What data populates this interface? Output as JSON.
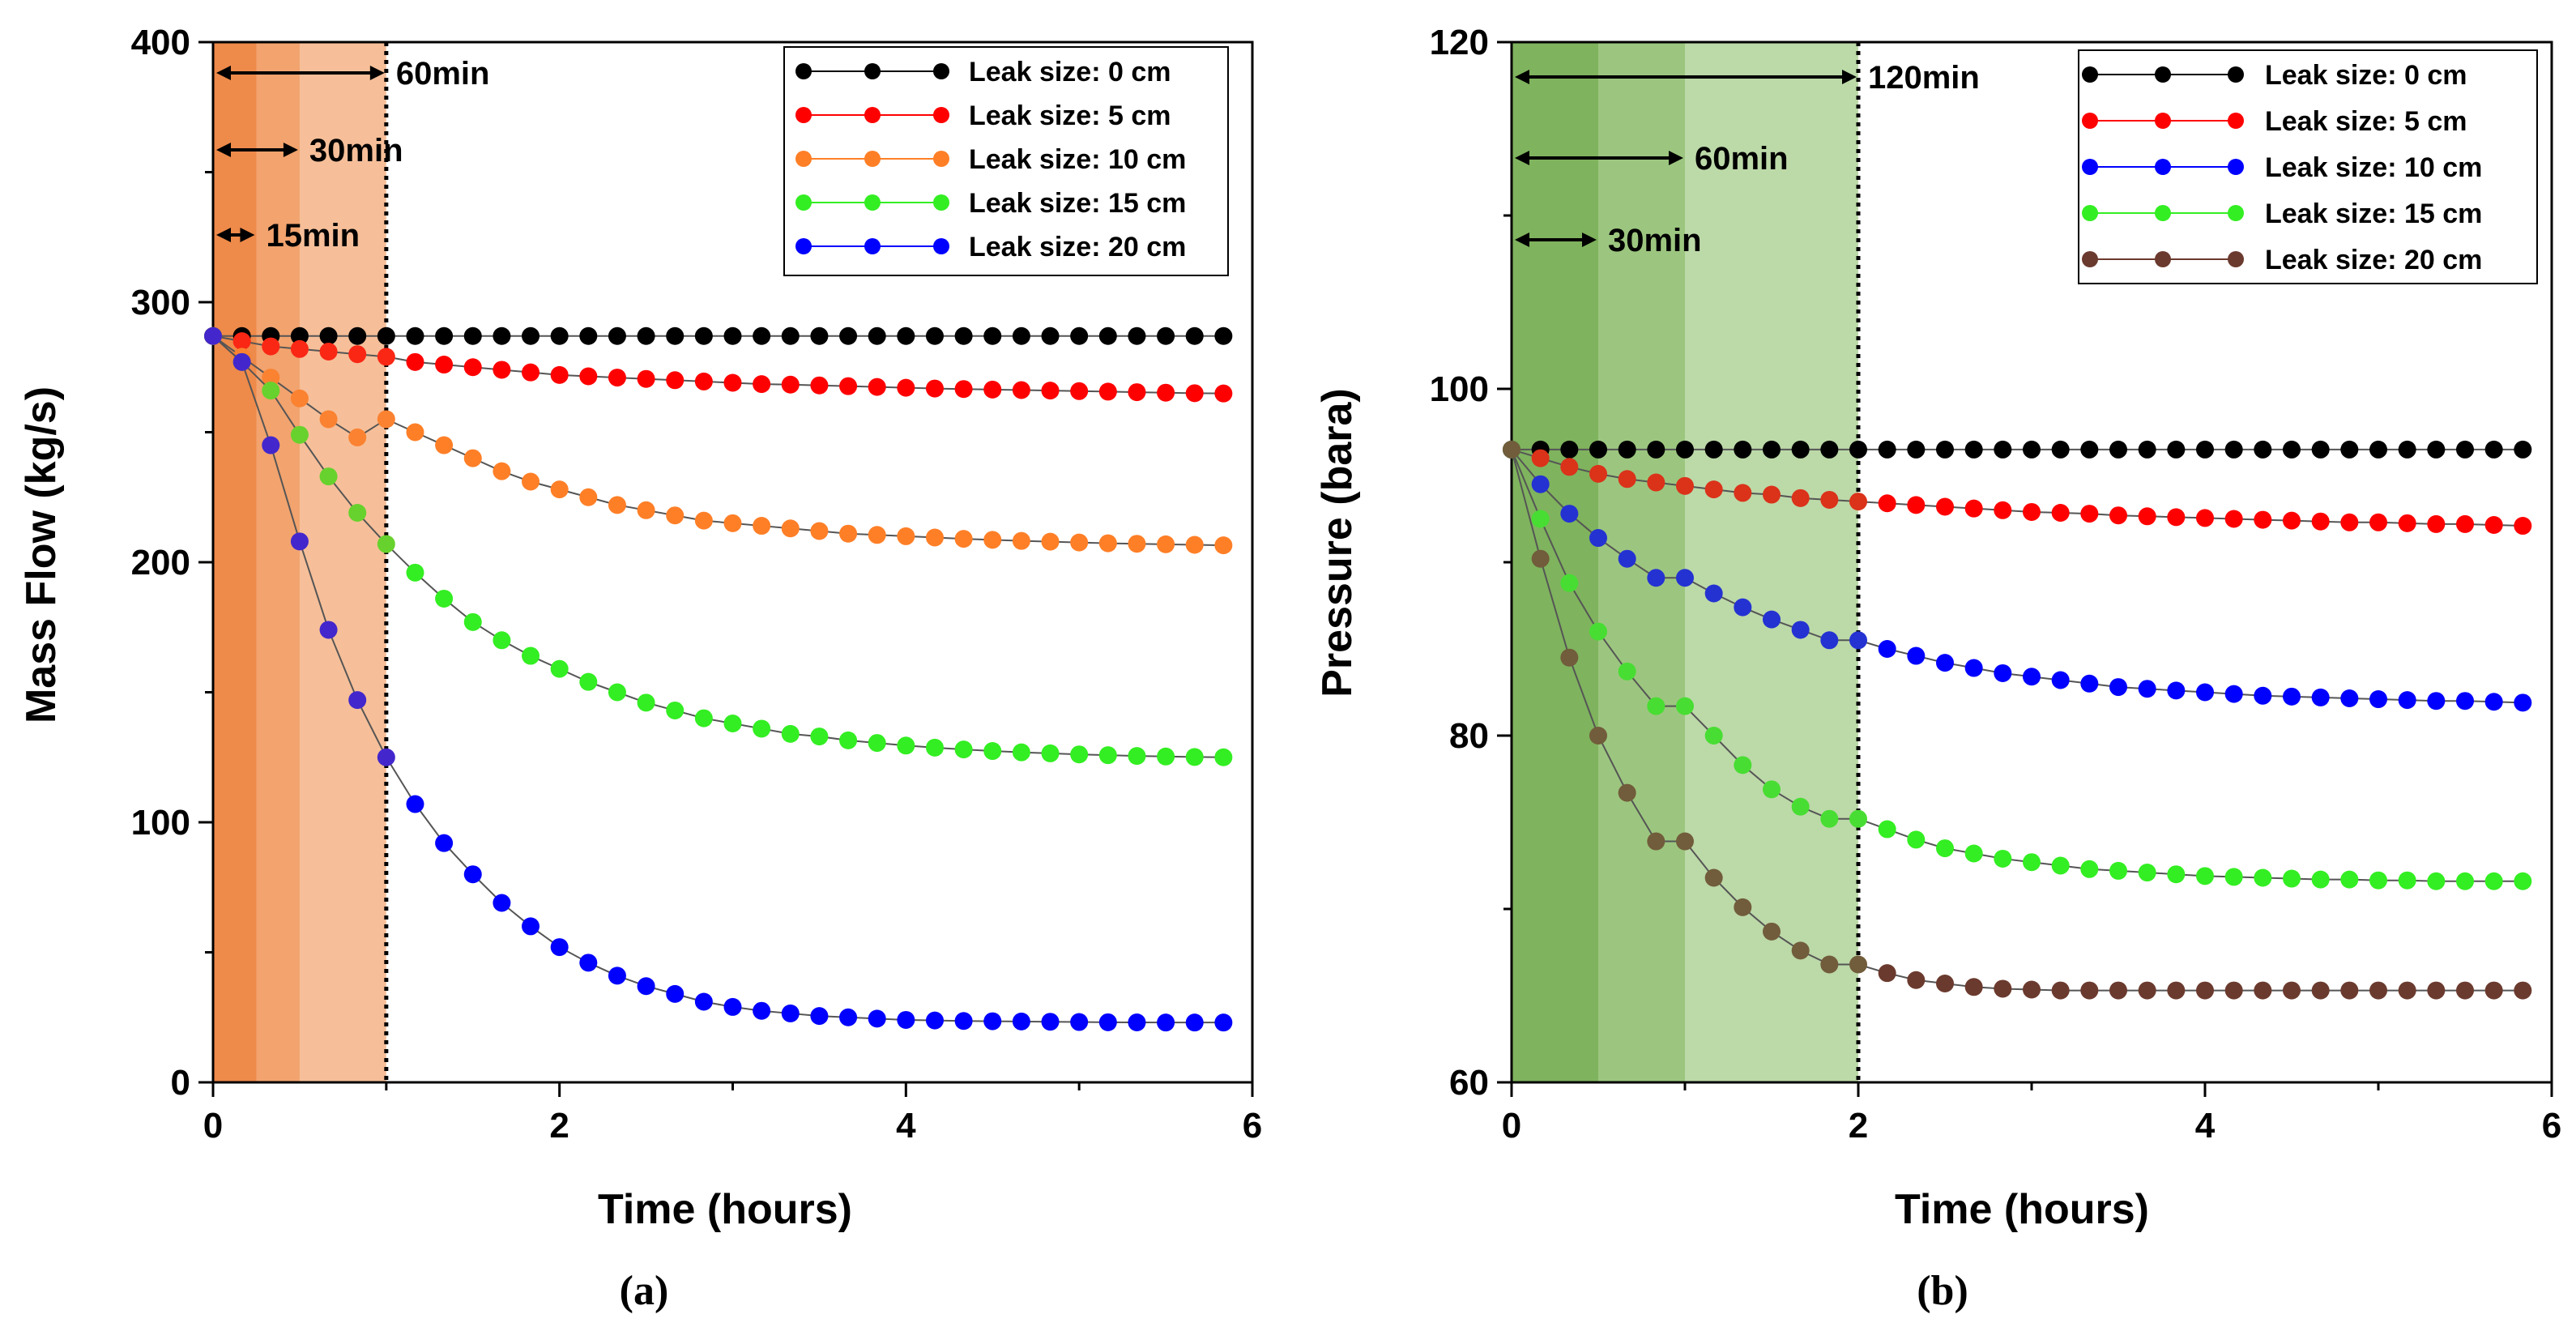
{
  "chart_data": [
    {
      "type": "line",
      "panel_label": "(a)",
      "title": "",
      "xlabel": "Time (hours)",
      "ylabel": "Mass Flow (kg/s)",
      "xlim": [
        0,
        6
      ],
      "ylim": [
        0,
        400
      ],
      "xticks": [
        0,
        2,
        4,
        6
      ],
      "yticks": [
        0,
        100,
        200,
        300,
        400
      ],
      "xtick_labels": [
        "0",
        "2",
        "4",
        "6"
      ],
      "ytick_labels": [
        "0",
        "100",
        "200",
        "300",
        "400"
      ],
      "grid": false,
      "legend_position": "top-right",
      "x": [
        0.0,
        0.1667,
        0.3333,
        0.5,
        0.6667,
        0.8333,
        1.0,
        1.1667,
        1.3333,
        1.5,
        1.6667,
        1.8333,
        2.0,
        2.1667,
        2.3333,
        2.5,
        2.6667,
        2.8333,
        3.0,
        3.1667,
        3.3333,
        3.5,
        3.6667,
        3.8333,
        4.0,
        4.1667,
        4.3333,
        4.5,
        4.6667,
        4.8333,
        5.0,
        5.1667,
        5.3333,
        5.5,
        5.6667,
        5.8333
      ],
      "series": [
        {
          "name": "Leak size: 0 cm",
          "color": "#000000",
          "values": [
            287,
            287,
            287,
            287,
            287,
            287,
            287,
            287,
            287,
            287,
            287,
            287,
            287,
            287,
            287,
            287,
            287,
            287,
            287,
            287,
            287,
            287,
            287,
            287,
            287,
            287,
            287,
            287,
            287,
            287,
            287,
            287,
            287,
            287,
            287,
            287
          ]
        },
        {
          "name": "Leak size: 5 cm",
          "color": "#ff0000",
          "values": [
            287,
            285,
            283,
            282,
            281,
            280,
            279,
            277,
            276,
            275,
            274,
            273,
            272,
            271.5,
            271,
            270.5,
            270,
            269.5,
            269,
            268.5,
            268.3,
            268,
            267.7,
            267.4,
            267.1,
            266.8,
            266.6,
            266.4,
            266.2,
            266,
            265.8,
            265.6,
            265.4,
            265.2,
            265,
            264.9
          ]
        },
        {
          "name": "Leak size: 10 cm",
          "color": "#ff7f27",
          "values": [
            287,
            279,
            271,
            263,
            255,
            248,
            255,
            250,
            245,
            240,
            235,
            231,
            228,
            225,
            222,
            220,
            218,
            216,
            215,
            214,
            213,
            212,
            211,
            210.5,
            210,
            209.5,
            209,
            208.6,
            208.2,
            207.9,
            207.6,
            207.3,
            207.1,
            206.9,
            206.7,
            206.5
          ]
        },
        {
          "name": "Leak size: 15 cm",
          "color": "#33ee22",
          "values": [
            287,
            277,
            266,
            249,
            233,
            219,
            207,
            196,
            186,
            177,
            170,
            164,
            159,
            154,
            150,
            146,
            143,
            140,
            138,
            136,
            134,
            133,
            131.5,
            130.5,
            129.5,
            128.7,
            128,
            127.4,
            126.9,
            126.5,
            126.1,
            125.8,
            125.5,
            125.3,
            125.1,
            125
          ]
        },
        {
          "name": "Leak size: 20 cm",
          "color": "#0000ff",
          "values": [
            287,
            277,
            245,
            208,
            174,
            147,
            125,
            107,
            92,
            80,
            69,
            60,
            52,
            46,
            41,
            37,
            34,
            31,
            29,
            27.5,
            26.5,
            25.5,
            25,
            24.5,
            24,
            23.8,
            23.6,
            23.5,
            23.4,
            23.3,
            23.2,
            23.1,
            23.05,
            23,
            23,
            23
          ]
        }
      ],
      "colors": {
        "window_dark": "#ee8a4a",
        "window_mid": "#f2a36e",
        "window_light": "#f6bf99",
        "window_colored_marker_blend": "#7c5ea6"
      },
      "windows": [
        {
          "label": "15min",
          "hours": 0.25
        },
        {
          "label": "30min",
          "hours": 0.5
        },
        {
          "label": "60min",
          "hours": 1.0
        }
      ]
    },
    {
      "type": "line",
      "panel_label": "(b)",
      "title": "",
      "xlabel": "Time (hours)",
      "ylabel": "Pressure (bara)",
      "xlim": [
        0,
        6
      ],
      "ylim": [
        60,
        120
      ],
      "xticks": [
        0,
        2,
        4,
        6
      ],
      "yticks": [
        60,
        80,
        100,
        120
      ],
      "xtick_labels": [
        "0",
        "2",
        "4",
        "6"
      ],
      "ytick_labels": [
        "60",
        "80",
        "100",
        "120"
      ],
      "grid": false,
      "legend_position": "top-right",
      "x": [
        0.0,
        0.1667,
        0.3333,
        0.5,
        0.6667,
        0.8333,
        1.0,
        1.1667,
        1.3333,
        1.5,
        1.6667,
        1.8333,
        2.0,
        2.1667,
        2.3333,
        2.5,
        2.6667,
        2.8333,
        3.0,
        3.1667,
        3.3333,
        3.5,
        3.6667,
        3.8333,
        4.0,
        4.1667,
        4.3333,
        4.5,
        4.6667,
        4.8333,
        5.0,
        5.1667,
        5.3333,
        5.5,
        5.6667,
        5.8333
      ],
      "series": [
        {
          "name": "Leak size: 0 cm",
          "color": "#000000",
          "values": [
            96.5,
            96.5,
            96.5,
            96.5,
            96.5,
            96.5,
            96.5,
            96.5,
            96.5,
            96.5,
            96.5,
            96.5,
            96.5,
            96.5,
            96.5,
            96.5,
            96.5,
            96.5,
            96.5,
            96.5,
            96.5,
            96.5,
            96.5,
            96.5,
            96.5,
            96.5,
            96.5,
            96.5,
            96.5,
            96.5,
            96.5,
            96.5,
            96.5,
            96.5,
            96.5,
            96.5
          ]
        },
        {
          "name": "Leak size: 5 cm",
          "color": "#ff0000",
          "values": [
            96.5,
            96.0,
            95.5,
            95.1,
            94.8,
            94.6,
            94.4,
            94.2,
            94.0,
            93.9,
            93.7,
            93.6,
            93.5,
            93.4,
            93.3,
            93.2,
            93.1,
            93.0,
            92.9,
            92.85,
            92.8,
            92.7,
            92.65,
            92.6,
            92.55,
            92.5,
            92.45,
            92.4,
            92.35,
            92.3,
            92.3,
            92.25,
            92.2,
            92.2,
            92.15,
            92.1
          ]
        },
        {
          "name": "Leak size: 10 cm",
          "color": "#0000ff",
          "values": [
            96.5,
            94.5,
            92.8,
            91.4,
            90.2,
            89.1,
            89.1,
            88.2,
            87.4,
            86.7,
            86.1,
            85.5,
            85.5,
            85.0,
            84.6,
            84.2,
            83.9,
            83.6,
            83.4,
            83.2,
            83.0,
            82.8,
            82.7,
            82.6,
            82.5,
            82.4,
            82.3,
            82.25,
            82.2,
            82.15,
            82.1,
            82.05,
            82.0,
            82.0,
            81.95,
            81.9
          ]
        },
        {
          "name": "Leak size: 15 cm",
          "color": "#33ee22",
          "values": [
            96.5,
            92.5,
            88.8,
            86.0,
            83.7,
            81.7,
            81.7,
            80.0,
            78.3,
            76.9,
            75.9,
            75.2,
            75.2,
            74.6,
            74.0,
            73.5,
            73.2,
            72.9,
            72.7,
            72.5,
            72.3,
            72.2,
            72.1,
            72.0,
            71.9,
            71.85,
            71.8,
            71.75,
            71.7,
            71.7,
            71.65,
            71.65,
            71.6,
            71.6,
            71.6,
            71.6
          ]
        },
        {
          "name": "Leak size: 20 cm",
          "color": "#6b3a2e",
          "values": [
            96.5,
            90.2,
            84.5,
            80.0,
            76.7,
            73.9,
            73.9,
            71.8,
            70.1,
            68.7,
            67.6,
            66.8,
            66.8,
            66.3,
            65.9,
            65.7,
            65.5,
            65.4,
            65.35,
            65.3,
            65.3,
            65.3,
            65.3,
            65.3,
            65.3,
            65.3,
            65.3,
            65.3,
            65.3,
            65.3,
            65.3,
            65.3,
            65.3,
            65.3,
            65.3,
            65.3
          ]
        }
      ],
      "colors": {
        "window_dark": "#7fb35e",
        "window_mid": "#9cc67f",
        "window_light": "#bcd9a8"
      },
      "windows": [
        {
          "label": "30min",
          "hours": 0.5
        },
        {
          "label": "60min",
          "hours": 1.0
        },
        {
          "label": "120min",
          "hours": 2.0
        }
      ]
    }
  ]
}
